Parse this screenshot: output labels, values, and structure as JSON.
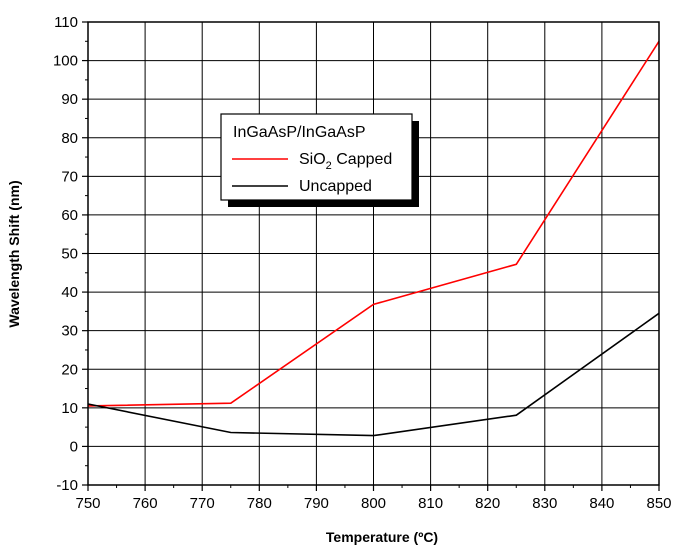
{
  "chart_data": {
    "type": "line",
    "xlabel": "Temperature (ºC)",
    "ylabel": "Wavelength Shift (nm)",
    "xlim": [
      750,
      850
    ],
    "ylim": [
      -10,
      110
    ],
    "xticks": [
      "750",
      "760",
      "770",
      "780",
      "790",
      "800",
      "810",
      "820",
      "830",
      "840",
      "850"
    ],
    "yticks": [
      "-10",
      "0",
      "10",
      "20",
      "30",
      "40",
      "50",
      "60",
      "70",
      "80",
      "90",
      "100",
      "110"
    ],
    "grid": true,
    "legend": {
      "title": "InGaAsP/InGaAsP",
      "placement": "upper-left-center"
    },
    "series": [
      {
        "name": "SiO2 Capped",
        "label_main": "SiO",
        "label_sub": "2",
        "label_rest": " Capped",
        "color": "#ff0000",
        "x": [
          750,
          775,
          800,
          825,
          850
        ],
        "y": [
          10.5,
          11.2,
          36.8,
          47.2,
          105
        ]
      },
      {
        "name": "Uncapped",
        "label_main": "Uncapped",
        "label_sub": "",
        "label_rest": "",
        "color": "#000000",
        "x": [
          750,
          775,
          800,
          825,
          850
        ],
        "y": [
          11,
          3.6,
          2.8,
          8.1,
          34.5
        ]
      }
    ]
  }
}
